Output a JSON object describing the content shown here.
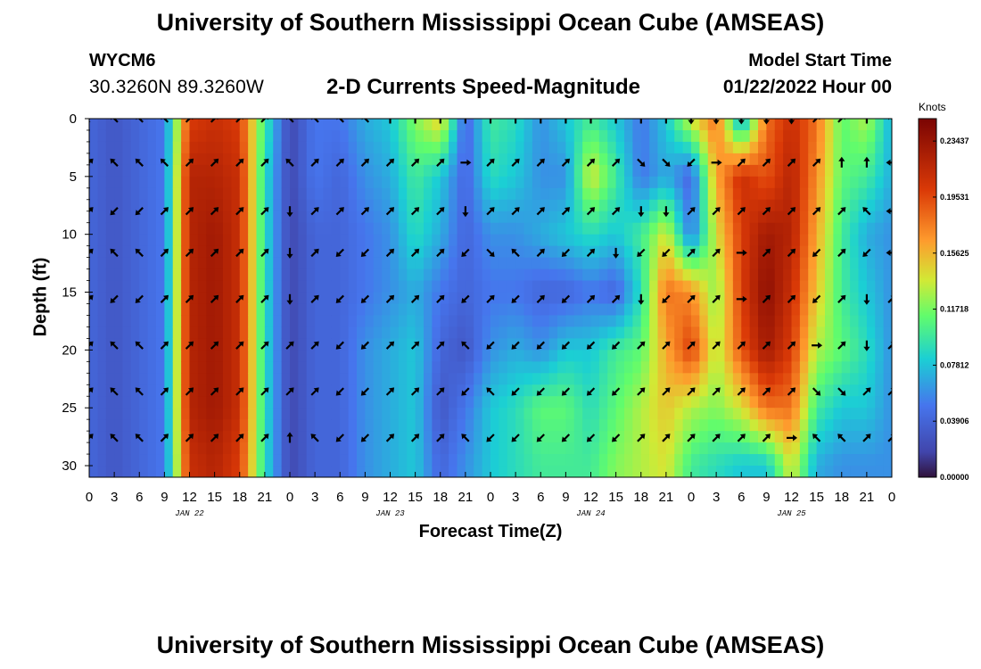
{
  "header": {
    "title": "University of Southern Mississippi Ocean Cube (AMSEAS)",
    "station_id": "WYCM6",
    "coordinates": "30.3260N  89.3260W",
    "subtitle": "2-D Currents Speed-Magnitude",
    "model_start_label": "Model Start Time",
    "model_start_value": "01/22/2022 Hour 00"
  },
  "footer": {
    "title": "University of Southern Mississippi Ocean Cube (AMSEAS)"
  },
  "colors": {
    "background": "#ffffff",
    "axis": "#000000",
    "arrow": "#000000"
  },
  "chart_data": {
    "type": "heatmap",
    "title": "2-D Currents Speed-Magnitude",
    "xlabel": "Forecast Time(Z)",
    "ylabel": "Depth (ft)",
    "x_tick_labels": [
      "0",
      "3",
      "6",
      "9",
      "12",
      "15",
      "18",
      "21",
      "0",
      "3",
      "6",
      "9",
      "12",
      "15",
      "18",
      "21",
      "0",
      "3",
      "6",
      "9",
      "12",
      "15",
      "18",
      "21",
      "0",
      "3",
      "6",
      "9",
      "12",
      "15",
      "18",
      "21",
      "0"
    ],
    "x_hours_range": [
      0,
      96
    ],
    "day_labels": [
      {
        "label": "JAN 22",
        "hour": 12
      },
      {
        "label": "JAN 23",
        "hour": 36
      },
      {
        "label": "JAN 24",
        "hour": 60
      },
      {
        "label": "JAN 25",
        "hour": 84
      }
    ],
    "y_ticks": [
      0,
      5,
      10,
      15,
      20,
      25,
      30
    ],
    "ylim": [
      0,
      31
    ],
    "colorbar": {
      "label": "Knots",
      "ticks": [
        "0.23437",
        "0.19531",
        "0.15625",
        "0.11718",
        "0.07812",
        "0.03906",
        "0.00000"
      ],
      "tick_values": [
        0.23437,
        0.19531,
        0.15625,
        0.11718,
        0.07812,
        0.03906,
        0.0
      ],
      "range": [
        0.0,
        0.25
      ]
    },
    "time_hours": [
      0,
      3,
      6,
      9,
      12,
      15,
      18,
      21,
      24,
      27,
      30,
      33,
      36,
      39,
      42,
      45,
      48,
      51,
      54,
      57,
      60,
      63,
      66,
      69,
      72,
      75,
      78,
      81,
      84,
      87,
      90,
      93,
      96
    ],
    "depths_ft": [
      0,
      5,
      10,
      15,
      20,
      25,
      30
    ],
    "speed_knots": [
      [
        0.04,
        0.03,
        0.04,
        0.05,
        0.2,
        0.21,
        0.2,
        0.1,
        0.02,
        0.05,
        0.05,
        0.07,
        0.08,
        0.12,
        0.15,
        0.04,
        0.1,
        0.09,
        0.06,
        0.08,
        0.1,
        0.08,
        0.05,
        0.08,
        0.14,
        0.18,
        0.06,
        0.18,
        0.21,
        0.18,
        0.11,
        0.13,
        0.07
      ],
      [
        0.04,
        0.03,
        0.04,
        0.05,
        0.22,
        0.22,
        0.21,
        0.09,
        0.02,
        0.05,
        0.04,
        0.06,
        0.07,
        0.1,
        0.08,
        0.04,
        0.09,
        0.08,
        0.06,
        0.06,
        0.14,
        0.1,
        0.05,
        0.07,
        0.04,
        0.16,
        0.21,
        0.19,
        0.22,
        0.17,
        0.11,
        0.1,
        0.07
      ],
      [
        0.04,
        0.03,
        0.04,
        0.05,
        0.22,
        0.23,
        0.21,
        0.09,
        0.02,
        0.04,
        0.04,
        0.05,
        0.06,
        0.09,
        0.07,
        0.04,
        0.06,
        0.06,
        0.07,
        0.08,
        0.09,
        0.08,
        0.1,
        0.14,
        0.05,
        0.14,
        0.2,
        0.23,
        0.22,
        0.16,
        0.1,
        0.07,
        0.06
      ],
      [
        0.04,
        0.03,
        0.04,
        0.05,
        0.22,
        0.23,
        0.21,
        0.09,
        0.02,
        0.04,
        0.04,
        0.05,
        0.06,
        0.07,
        0.05,
        0.04,
        0.05,
        0.05,
        0.04,
        0.04,
        0.05,
        0.04,
        0.09,
        0.18,
        0.17,
        0.12,
        0.2,
        0.24,
        0.21,
        0.15,
        0.1,
        0.08,
        0.06
      ],
      [
        0.04,
        0.03,
        0.04,
        0.05,
        0.22,
        0.23,
        0.21,
        0.09,
        0.02,
        0.04,
        0.04,
        0.06,
        0.07,
        0.08,
        0.04,
        0.03,
        0.06,
        0.07,
        0.06,
        0.08,
        0.08,
        0.1,
        0.11,
        0.16,
        0.2,
        0.13,
        0.19,
        0.23,
        0.2,
        0.13,
        0.11,
        0.09,
        0.06
      ],
      [
        0.04,
        0.03,
        0.04,
        0.05,
        0.22,
        0.23,
        0.21,
        0.09,
        0.02,
        0.04,
        0.04,
        0.06,
        0.07,
        0.08,
        0.03,
        0.05,
        0.08,
        0.09,
        0.11,
        0.11,
        0.09,
        0.11,
        0.13,
        0.15,
        0.13,
        0.12,
        0.14,
        0.18,
        0.18,
        0.1,
        0.08,
        0.08,
        0.06
      ],
      [
        0.04,
        0.03,
        0.04,
        0.05,
        0.21,
        0.22,
        0.2,
        0.09,
        0.02,
        0.04,
        0.04,
        0.06,
        0.07,
        0.08,
        0.04,
        0.06,
        0.08,
        0.09,
        0.1,
        0.1,
        0.1,
        0.12,
        0.13,
        0.14,
        0.1,
        0.09,
        0.08,
        0.08,
        0.14,
        0.07,
        0.06,
        0.06,
        0.06
      ]
    ],
    "vector_directions_deg": [
      [
        225,
        135,
        135,
        135,
        45,
        45,
        45,
        45,
        135,
        135,
        135,
        135,
        90,
        90,
        90,
        90,
        90,
        90,
        90,
        90,
        90,
        90,
        90,
        90,
        270,
        270,
        270,
        270,
        270,
        45,
        45,
        90,
        135
      ],
      [
        45,
        135,
        135,
        135,
        45,
        45,
        45,
        45,
        135,
        45,
        45,
        45,
        45,
        45,
        45,
        0,
        45,
        45,
        45,
        45,
        45,
        45,
        315,
        315,
        225,
        0,
        45,
        45,
        45,
        45,
        90,
        90,
        180
      ],
      [
        45,
        225,
        225,
        45,
        45,
        45,
        45,
        45,
        270,
        45,
        45,
        45,
        45,
        45,
        45,
        270,
        45,
        45,
        45,
        45,
        45,
        45,
        270,
        270,
        45,
        45,
        45,
        45,
        45,
        45,
        45,
        135,
        180
      ],
      [
        45,
        135,
        135,
        45,
        45,
        45,
        45,
        45,
        270,
        45,
        225,
        225,
        45,
        45,
        45,
        225,
        315,
        135,
        45,
        225,
        45,
        270,
        225,
        225,
        45,
        45,
        0,
        45,
        45,
        225,
        45,
        225,
        180
      ],
      [
        45,
        225,
        225,
        45,
        45,
        45,
        45,
        45,
        270,
        45,
        225,
        225,
        45,
        45,
        45,
        225,
        45,
        225,
        45,
        225,
        45,
        45,
        270,
        225,
        45,
        45,
        0,
        45,
        45,
        225,
        45,
        270,
        45
      ],
      [
        45,
        135,
        135,
        45,
        45,
        45,
        45,
        45,
        45,
        45,
        225,
        225,
        45,
        45,
        45,
        135,
        225,
        225,
        225,
        225,
        225,
        225,
        45,
        45,
        45,
        45,
        45,
        45,
        45,
        0,
        45,
        270,
        45
      ],
      [
        45,
        135,
        135,
        45,
        45,
        45,
        45,
        45,
        45,
        45,
        225,
        225,
        45,
        45,
        45,
        225,
        135,
        225,
        225,
        225,
        225,
        225,
        45,
        45,
        45,
        45,
        45,
        45,
        45,
        315,
        315,
        45,
        45
      ],
      [
        45,
        135,
        135,
        45,
        45,
        45,
        45,
        45,
        90,
        135,
        225,
        225,
        45,
        45,
        45,
        135,
        225,
        225,
        225,
        225,
        225,
        225,
        45,
        45,
        45,
        45,
        45,
        45,
        0,
        135,
        135,
        45,
        45
      ]
    ],
    "vector_depths_ft": [
      0,
      3.8,
      8.0,
      11.6,
      15.6,
      19.6,
      23.6,
      27.6
    ]
  }
}
